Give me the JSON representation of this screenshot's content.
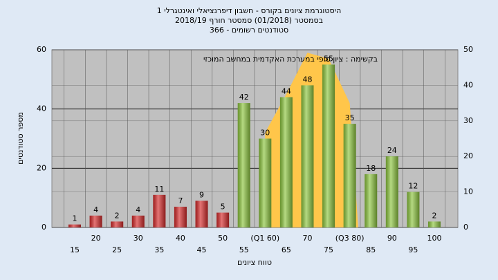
{
  "chart_data": {
    "type": "bar",
    "title": [
      "היסטוגרמת ציונים בקורס - חשבון דיפרנציאלי ואינטגרלי 1",
      "בסמסטר (01/2018) סמסטר חורף 2018/19",
      "סטודנטים רשומים - 366"
    ],
    "annotation": "בקשימה : ציון סופי במערכת האקדמית במחשב המוכזי",
    "xlabel": "טווח ציונים",
    "ylabel": "מספר סטודנטים",
    "categories": [
      "15",
      "20",
      "25",
      "30",
      "35",
      "40",
      "45",
      "50",
      "55",
      "(Q1 60)",
      "65",
      "70",
      "75",
      "(Q3 80)",
      "85",
      "90",
      "95",
      "100"
    ],
    "values": [
      1,
      4,
      2,
      4,
      11,
      7,
      9,
      5,
      42,
      30,
      44,
      48,
      55,
      35,
      18,
      24,
      12,
      2
    ],
    "colors": [
      "#d62a2a",
      "#d62a2a",
      "#d62a2a",
      "#d62a2a",
      "#d62a2a",
      "#d62a2a",
      "#d62a2a",
      "#d62a2a",
      "#8dc63f",
      "#8dc63f",
      "#8dc63f",
      "#8dc63f",
      "#8dc63f",
      "#8dc63f",
      "#8dc63f",
      "#8dc63f",
      "#8dc63f",
      "#8dc63f"
    ],
    "area": {
      "color": "#ffc64a",
      "values": [
        null,
        null,
        null,
        null,
        null,
        null,
        null,
        null,
        null,
        32,
        45,
        59,
        57,
        42,
        null,
        null,
        null,
        null
      ]
    },
    "ylim": [
      0,
      60
    ],
    "yticks": [
      0,
      20,
      40,
      60
    ],
    "y2lim": [
      0,
      50
    ],
    "y2ticks": [
      0,
      10,
      20,
      30,
      40,
      50
    ],
    "grid": true
  }
}
